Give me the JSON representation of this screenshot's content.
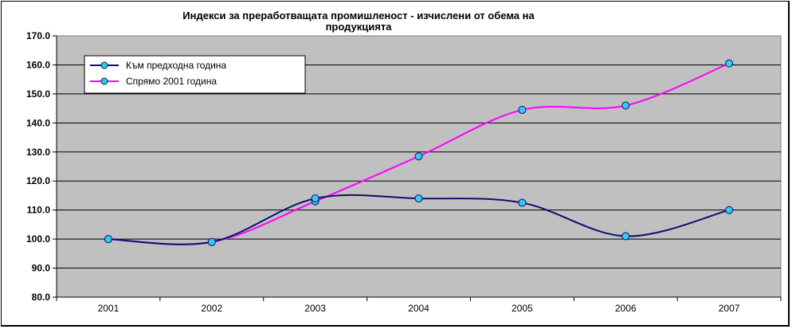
{
  "chart_data": {
    "type": "line",
    "title_lines": [
      "Индекси за преработващата промишленост - изчислени от обема на",
      "продукцията"
    ],
    "categories": [
      "2001",
      "2002",
      "2003",
      "2004",
      "2005",
      "2006",
      "2007"
    ],
    "y_ticks": [
      "80.0",
      "90.0",
      "100.0",
      "110.0",
      "120.0",
      "130.0",
      "140.0",
      "150.0",
      "160.0",
      "170.0"
    ],
    "ylim": [
      80,
      170
    ],
    "grid": true,
    "legend_position": "top-left",
    "series": [
      {
        "name": "Към предходна година",
        "color": "#0b1170",
        "values": [
          100.0,
          99.0,
          114.0,
          114.0,
          112.5,
          101.0,
          110.0
        ]
      },
      {
        "name": "Спрямо 2001 година",
        "color": "#ff00ff",
        "values": [
          100.0,
          99.0,
          113.0,
          128.5,
          144.5,
          146.0,
          160.5
        ]
      }
    ],
    "marker_color": "#33ccee",
    "plot_background": "#c0c0c0"
  }
}
